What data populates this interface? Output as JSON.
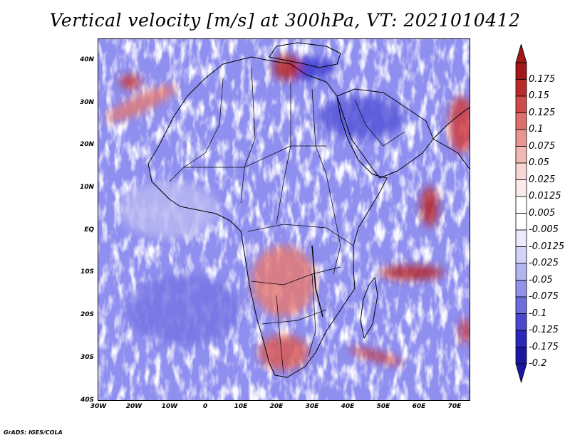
{
  "title": "Vertical velocity [m/s] at 300hPa, VT: 2021010412",
  "map": {
    "region": "Africa",
    "variable": "Vertical velocity",
    "units": "m/s",
    "level": "300hPa",
    "valid_time": "2021010412",
    "lat_ticks": [
      "40N",
      "30N",
      "20N",
      "10N",
      "EQ",
      "10S",
      "20S",
      "30S",
      "40S"
    ],
    "lon_ticks": [
      "30W",
      "20W",
      "10W",
      "0",
      "10E",
      "20E",
      "30E",
      "40E",
      "50E",
      "60E",
      "70E"
    ],
    "lon_range": [
      -30,
      75
    ],
    "lat_range": [
      -40,
      45
    ]
  },
  "colorbar": {
    "labels": [
      "0.175",
      "0.15",
      "0.125",
      "0.1",
      "0.075",
      "0.05",
      "0.025",
      "0.0125",
      "0.005",
      "-0.005",
      "-0.0125",
      "-0.025",
      "-0.05",
      "-0.075",
      "-0.1",
      "-0.125",
      "-0.175",
      "-0.2"
    ],
    "colors": [
      "#a01818",
      "#bb2a2a",
      "#cf4a48",
      "#de6e6a",
      "#e99692",
      "#f1b8b4",
      "#f7d6d3",
      "#fbeceb",
      "#ffffff",
      "#ffffff",
      "#ecebfb",
      "#d3d2f7",
      "#b4b4f1",
      "#9392e9",
      "#6e6dde",
      "#4a48cf",
      "#2a28bb",
      "#1a18a0"
    ]
  },
  "footer": "GrADS: IGES/COLA"
}
